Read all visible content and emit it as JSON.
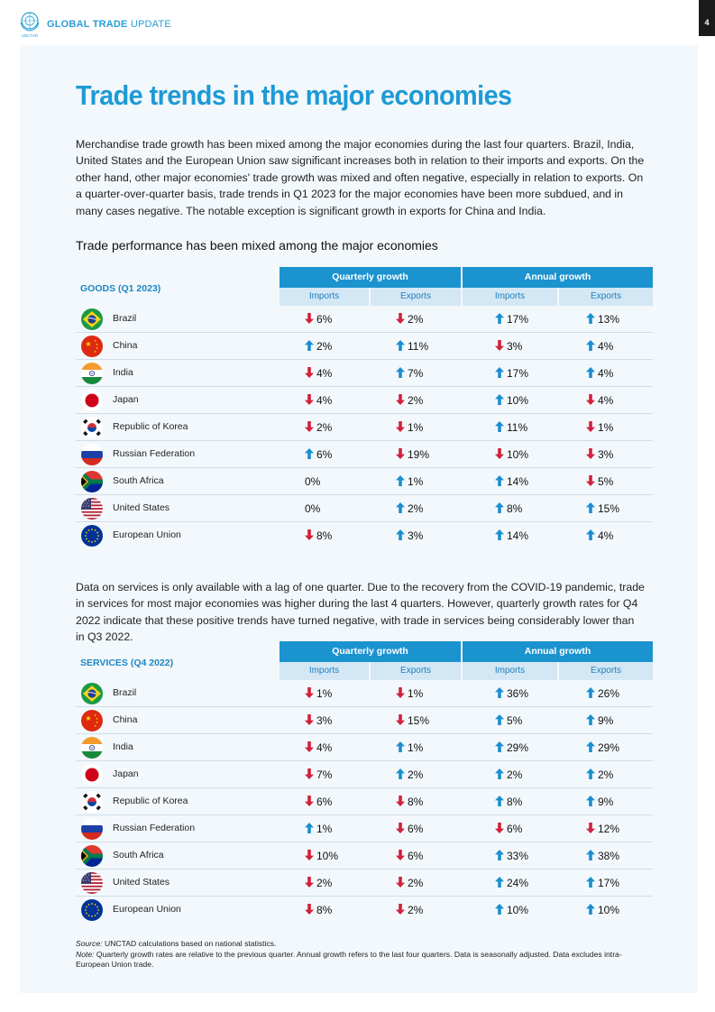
{
  "header": {
    "brand_bold": "GLOBAL TRADE",
    "brand_regular": " UPDATE",
    "page_number": "4",
    "logo_caption": "UNCTAD"
  },
  "title": "Trade trends in the major economies",
  "intro": "Merchandise trade growth has been mixed among the major economies during the last four quarters. Brazil, India, United States and the European Union saw significant increases both in relation to their imports and exports. On the other hand, other major economies' trade growth was mixed and often negative, especially in relation to exports. On a quarter-over-quarter basis, trade trends in Q1 2023 for the major economies have been more subdued, and in many cases negative. The notable exception is significant growth in exports for China and India.",
  "subheading": "Trade performance has been mixed among the major economies",
  "goods_table": {
    "title": "GOODS (Q1 2023)",
    "quarterly_label": "Quarterly growth",
    "annual_label": "Annual growth",
    "imports_label": "Imports",
    "exports_label": "Exports",
    "rows": [
      {
        "country": "Brazil",
        "flag": "brazil",
        "q_imp": "6%",
        "q_imp_dir": "down",
        "q_exp": "2%",
        "q_exp_dir": "down",
        "a_imp": "17%",
        "a_imp_dir": "up",
        "a_exp": "13%",
        "a_exp_dir": "up"
      },
      {
        "country": "China",
        "flag": "china",
        "q_imp": "2%",
        "q_imp_dir": "up",
        "q_exp": "11%",
        "q_exp_dir": "up",
        "a_imp": "3%",
        "a_imp_dir": "down",
        "a_exp": "4%",
        "a_exp_dir": "up"
      },
      {
        "country": "India",
        "flag": "india",
        "q_imp": "4%",
        "q_imp_dir": "down",
        "q_exp": "7%",
        "q_exp_dir": "up",
        "a_imp": "17%",
        "a_imp_dir": "up",
        "a_exp": "4%",
        "a_exp_dir": "up"
      },
      {
        "country": "Japan",
        "flag": "japan",
        "q_imp": "4%",
        "q_imp_dir": "down",
        "q_exp": "2%",
        "q_exp_dir": "down",
        "a_imp": "10%",
        "a_imp_dir": "up",
        "a_exp": "4%",
        "a_exp_dir": "down"
      },
      {
        "country": "Republic of Korea",
        "flag": "korea",
        "q_imp": "2%",
        "q_imp_dir": "down",
        "q_exp": "1%",
        "q_exp_dir": "down",
        "a_imp": "11%",
        "a_imp_dir": "up",
        "a_exp": "1%",
        "a_exp_dir": "down"
      },
      {
        "country": "Russian Federation",
        "flag": "russia",
        "q_imp": "6%",
        "q_imp_dir": "up",
        "q_exp": "19%",
        "q_exp_dir": "down",
        "a_imp": "10%",
        "a_imp_dir": "down",
        "a_exp": "3%",
        "a_exp_dir": "down"
      },
      {
        "country": "South Africa",
        "flag": "southafrica",
        "q_imp": "0%",
        "q_imp_dir": "none",
        "q_exp": "1%",
        "q_exp_dir": "up",
        "a_imp": "14%",
        "a_imp_dir": "up",
        "a_exp": "5%",
        "a_exp_dir": "down"
      },
      {
        "country": "United States",
        "flag": "usa",
        "q_imp": "0%",
        "q_imp_dir": "none",
        "q_exp": "2%",
        "q_exp_dir": "up",
        "a_imp": "8%",
        "a_imp_dir": "up",
        "a_exp": "15%",
        "a_exp_dir": "up"
      },
      {
        "country": "European Union",
        "flag": "eu",
        "q_imp": "8%",
        "q_imp_dir": "down",
        "q_exp": "3%",
        "q_exp_dir": "up",
        "a_imp": "14%",
        "a_imp_dir": "up",
        "a_exp": "4%",
        "a_exp_dir": "up"
      }
    ]
  },
  "services_intro": "Data on services is only available with a lag of one quarter. Due to the recovery from the COVID-19 pandemic, trade in services for most major economies was higher during the last 4 quarters. However, quarterly growth rates for Q4 2022 indicate that these positive trends have turned negative, with trade in services being considerably lower than in Q3 2022.",
  "services_table": {
    "title": "SERVICES (Q4 2022)",
    "quarterly_label": "Quarterly growth",
    "annual_label": "Annual growth",
    "imports_label": "Imports",
    "exports_label": "Exports",
    "rows": [
      {
        "country": "Brazil",
        "flag": "brazil",
        "q_imp": "1%",
        "q_imp_dir": "down",
        "q_exp": "1%",
        "q_exp_dir": "down",
        "a_imp": "36%",
        "a_imp_dir": "up",
        "a_exp": "26%",
        "a_exp_dir": "up"
      },
      {
        "country": "China",
        "flag": "china",
        "q_imp": "3%",
        "q_imp_dir": "down",
        "q_exp": "15%",
        "q_exp_dir": "down",
        "a_imp": "5%",
        "a_imp_dir": "up",
        "a_exp": "9%",
        "a_exp_dir": "up"
      },
      {
        "country": "India",
        "flag": "india",
        "q_imp": "4%",
        "q_imp_dir": "down",
        "q_exp": "1%",
        "q_exp_dir": "up",
        "a_imp": "29%",
        "a_imp_dir": "up",
        "a_exp": "29%",
        "a_exp_dir": "up"
      },
      {
        "country": "Japan",
        "flag": "japan",
        "q_imp": "7%",
        "q_imp_dir": "down",
        "q_exp": "2%",
        "q_exp_dir": "up",
        "a_imp": "2%",
        "a_imp_dir": "up",
        "a_exp": "2%",
        "a_exp_dir": "up"
      },
      {
        "country": "Republic of Korea",
        "flag": "korea",
        "q_imp": "6%",
        "q_imp_dir": "down",
        "q_exp": "8%",
        "q_exp_dir": "down",
        "a_imp": "8%",
        "a_imp_dir": "up",
        "a_exp": "9%",
        "a_exp_dir": "up"
      },
      {
        "country": "Russian Federation",
        "flag": "russia",
        "q_imp": "1%",
        "q_imp_dir": "up",
        "q_exp": "6%",
        "q_exp_dir": "down",
        "a_imp": "6%",
        "a_imp_dir": "down",
        "a_exp": "12%",
        "a_exp_dir": "down"
      },
      {
        "country": "South Africa",
        "flag": "southafrica",
        "q_imp": "10%",
        "q_imp_dir": "down",
        "q_exp": "6%",
        "q_exp_dir": "down",
        "a_imp": "33%",
        "a_imp_dir": "up",
        "a_exp": "38%",
        "a_exp_dir": "up"
      },
      {
        "country": "United States",
        "flag": "usa",
        "q_imp": "2%",
        "q_imp_dir": "down",
        "q_exp": "2%",
        "q_exp_dir": "down",
        "a_imp": "24%",
        "a_imp_dir": "up",
        "a_exp": "17%",
        "a_exp_dir": "up"
      },
      {
        "country": "European Union",
        "flag": "eu",
        "q_imp": "8%",
        "q_imp_dir": "down",
        "q_exp": "2%",
        "q_exp_dir": "down",
        "a_imp": "10%",
        "a_imp_dir": "up",
        "a_exp": "10%",
        "a_exp_dir": "up"
      }
    ]
  },
  "footnote": {
    "source_label": "Source:",
    "source_text": " UNCTAD calculations based on national statistics.",
    "note_label": "Note:",
    "note_text": " Quarterly growth rates are relative to the previous quarter. Annual growth refers to the last four quarters. Data is seasonally adjusted. Data excludes intra-European Union trade."
  },
  "colors": {
    "accent": "#1e9ad6",
    "header_band": "#1b93cf",
    "subheader_band": "#d3e7f5",
    "up_arrow": "#1a8fd0",
    "down_arrow": "#d2213b",
    "panel_bg": "#f3f8fc"
  }
}
